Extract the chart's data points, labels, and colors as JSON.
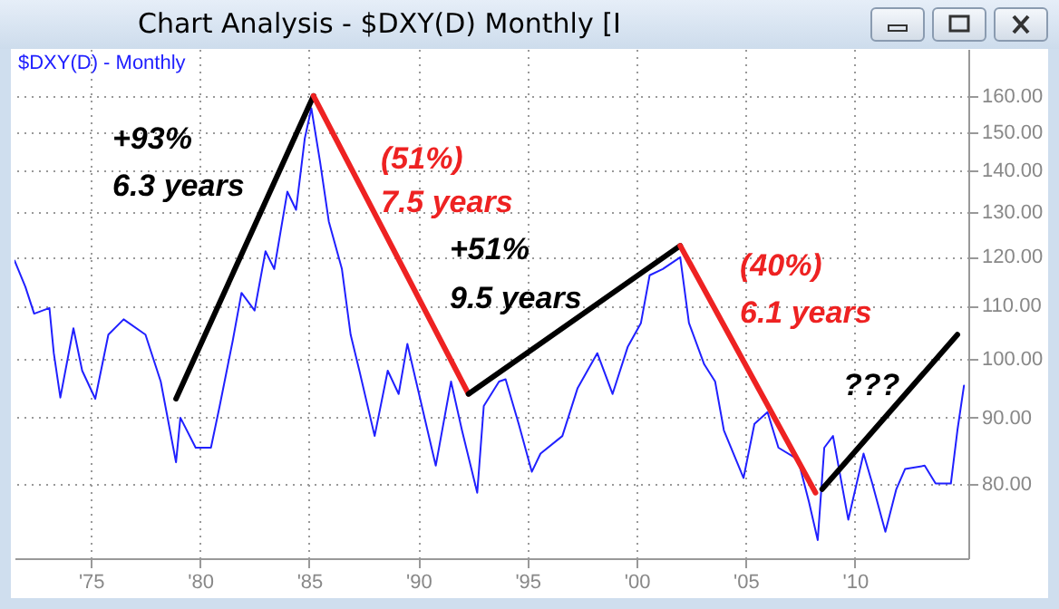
{
  "chart_data": {
    "type": "line",
    "title": "Chart Analysis - $DXY(D) Monthly [I",
    "series": [
      {
        "name": "$DXY(D) - Monthly",
        "color": "#2020ff",
        "x": [
          1971.5,
          1972.0,
          1972.4,
          1973.1,
          1973.3,
          1973.6,
          1974.2,
          1974.6,
          1975.2,
          1975.8,
          1976.5,
          1977.5,
          1978.2,
          1978.9,
          1979.1,
          1979.8,
          1980.5,
          1980.9,
          1981.5,
          1981.9,
          1982.5,
          1983.0,
          1983.4,
          1984.0,
          1984.4,
          1984.8,
          1985.1,
          1985.5,
          1985.9,
          1986.5,
          1986.9,
          1987.3,
          1988.0,
          1988.6,
          1989.1,
          1989.5,
          1989.9,
          1990.8,
          1991.5,
          1992.0,
          1992.7,
          1993.0,
          1993.7,
          1994.0,
          1994.6,
          1995.2,
          1995.6,
          1996.6,
          1997.3,
          1998.2,
          1998.9,
          1999.6,
          2000.2,
          2000.6,
          2001.2,
          2002.0,
          2002.4,
          2003.1,
          2003.6,
          2004.0,
          2004.9,
          2005.4,
          2006.0,
          2006.5,
          2007.4,
          2007.9,
          2008.3,
          2008.6,
          2009.0,
          2009.7,
          2010.4,
          2010.8,
          2011.4,
          2011.9,
          2012.3,
          2013.2,
          2013.7,
          2014.4,
          2014.7,
          2015.0
        ],
        "values": [
          119.2,
          113.7,
          108.4,
          109.5,
          101,
          93.3,
          105.6,
          97.9,
          93.1,
          104.4,
          107.3,
          104.4,
          96,
          83.1,
          90,
          85.3,
          85.3,
          91.9,
          103.3,
          112.5,
          109,
          121.2,
          117.4,
          134.8,
          130.5,
          148.3,
          156.5,
          142.2,
          127.8,
          117.4,
          104.4,
          97.9,
          87.1,
          97.9,
          93.9,
          102.7,
          96,
          82.6,
          96,
          88,
          78.7,
          91.9,
          96,
          96.4,
          89,
          81.7,
          84.4,
          87.1,
          94.9,
          101,
          93.9,
          102.2,
          106.6,
          116.1,
          117.4,
          119.9,
          106.6,
          99,
          96,
          88,
          80.8,
          89,
          90.9,
          85.3,
          83.5,
          77.4,
          72.3,
          85.3,
          87.1,
          75,
          84.4,
          80,
          73.4,
          79.2,
          82.1,
          82.6,
          80,
          80,
          88,
          95.3
        ]
      },
      {
        "color": "#000000",
        "x": [
          1978.9,
          1985.2
        ],
        "values": [
          93.1,
          160
        ]
      },
      {
        "color": "#ee2222",
        "x": [
          1985.2,
          1992.3
        ],
        "values": [
          160,
          93.9
        ]
      },
      {
        "color": "#000000",
        "x": [
          1992.3,
          2002.0
        ],
        "values": [
          93.9,
          122.4
        ]
      },
      {
        "color": "#ee2222",
        "x": [
          2002.0,
          2008.2
        ],
        "values": [
          122.4,
          78.7
        ]
      },
      {
        "color": "#000000",
        "x": [
          2008.5,
          2014.7
        ],
        "values": [
          79.2,
          104.4
        ]
      }
    ],
    "annotations": [
      "+93%",
      "6.3 years",
      "(51%)",
      "7.5 years",
      "+51%",
      "9.5 years",
      "(40%)",
      "6.1 years",
      "???"
    ],
    "xlim": [
      1971.5,
      2015.2
    ],
    "xticks": [
      {
        "value": 1975,
        "label": "'75"
      },
      {
        "value": 1980,
        "label": "'80"
      },
      {
        "value": 1985,
        "label": "'85"
      },
      {
        "value": 1990,
        "label": "'90"
      },
      {
        "value": 1995,
        "label": "'95"
      },
      {
        "value": 2000,
        "label": "'00"
      },
      {
        "value": 2005,
        "label": "'05"
      },
      {
        "value": 2010,
        "label": "'10"
      }
    ],
    "ylim": [
      70,
      174
    ],
    "yticks": [
      {
        "value": 80,
        "label": "80.00"
      },
      {
        "value": 90,
        "label": "90.00"
      },
      {
        "value": 100,
        "label": "100.00"
      },
      {
        "value": 110,
        "label": "110.00"
      },
      {
        "value": 120,
        "label": "120.00"
      },
      {
        "value": 130,
        "label": "130.00"
      },
      {
        "value": 140,
        "label": "140.00"
      },
      {
        "value": 150,
        "label": "150.00"
      },
      {
        "value": 160,
        "label": "160.00"
      }
    ],
    "log": "y",
    "grid": true,
    "legend": "top left"
  }
}
